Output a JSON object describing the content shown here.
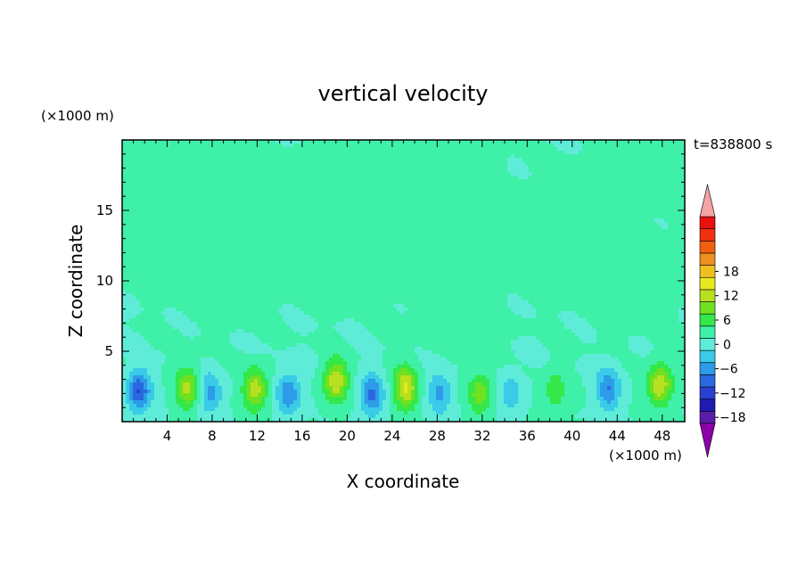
{
  "chart_data": {
    "type": "heatmap",
    "title": "vertical velocity",
    "xlabel": "X coordinate",
    "ylabel": "Z coordinate",
    "x_unit_label": "(×1000 m)",
    "y_unit_label": "(×1000 m)",
    "time_label": "t=838800 s",
    "xlim": [
      0,
      50
    ],
    "ylim": [
      0,
      20
    ],
    "x_ticks": [
      4,
      8,
      12,
      16,
      20,
      24,
      28,
      32,
      36,
      40,
      44,
      48
    ],
    "y_ticks": [
      5,
      10,
      15
    ],
    "colorbar": {
      "min": -21,
      "max": 21,
      "step": 3,
      "labels": [
        18,
        12,
        6,
        0,
        -6,
        -12,
        -18
      ],
      "colors": [
        "#8b00a8",
        "#5a1da8",
        "#1f1ab0",
        "#2b3fd0",
        "#2a68e0",
        "#2d9be8",
        "#39cbe8",
        "#5eecd8",
        "#3ff0a8",
        "#34e84a",
        "#70e020",
        "#b8e020",
        "#e8e820",
        "#f0c020",
        "#f09020",
        "#f06010",
        "#f03010",
        "#e81010",
        "#f4a4a4"
      ]
    },
    "field_model": {
      "background": 0.0,
      "upper_positive_patches": [
        {
          "x": 0.5,
          "z": 19.0,
          "value": 1.5
        },
        {
          "x": 48.5,
          "z": 19.0,
          "value": 1.5
        },
        {
          "x": 8.0,
          "z": 16.0,
          "value": 1.2
        },
        {
          "x": 15.0,
          "z": 15.0,
          "value": 1.2
        },
        {
          "x": 21.0,
          "z": 16.5,
          "value": 1.2
        },
        {
          "x": 27.0,
          "z": 18.0,
          "value": 1.3
        },
        {
          "x": 3.0,
          "z": 13.5,
          "value": 1.0
        },
        {
          "x": 9.0,
          "z": 9.5,
          "value": 1.3
        },
        {
          "x": 18.0,
          "z": 11.0,
          "value": 1.1
        },
        {
          "x": 24.5,
          "z": 12.0,
          "value": 1.0
        },
        {
          "x": 29.5,
          "z": 8.0,
          "value": 1.2
        },
        {
          "x": 36.0,
          "z": 12.5,
          "value": 1.0
        },
        {
          "x": 41.0,
          "z": 15.0,
          "value": 1.2
        },
        {
          "x": 45.0,
          "z": 9.0,
          "value": 1.3
        }
      ],
      "lower_cells": [
        {
          "x": 1.5,
          "z": 2.2,
          "value": -12
        },
        {
          "x": 5.8,
          "z": 2.4,
          "value": 10
        },
        {
          "x": 7.8,
          "z": 2.0,
          "value": -7
        },
        {
          "x": 11.8,
          "z": 2.3,
          "value": 11
        },
        {
          "x": 14.8,
          "z": 2.0,
          "value": -9
        },
        {
          "x": 19.0,
          "z": 2.9,
          "value": 12
        },
        {
          "x": 22.2,
          "z": 1.9,
          "value": -10
        },
        {
          "x": 25.2,
          "z": 2.4,
          "value": 13
        },
        {
          "x": 28.2,
          "z": 2.0,
          "value": -7
        },
        {
          "x": 31.8,
          "z": 2.0,
          "value": 8
        },
        {
          "x": 34.5,
          "z": 2.0,
          "value": -5
        },
        {
          "x": 38.5,
          "z": 2.2,
          "value": 5
        },
        {
          "x": 43.2,
          "z": 2.3,
          "value": -9
        },
        {
          "x": 47.8,
          "z": 2.6,
          "value": 12
        }
      ]
    }
  }
}
